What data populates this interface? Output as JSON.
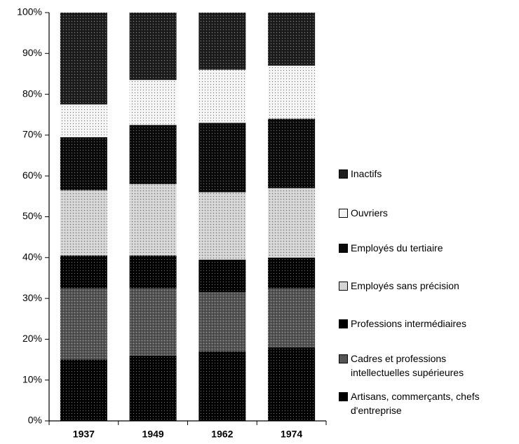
{
  "chart_data": {
    "type": "stacked_bar",
    "categories": [
      "1937",
      "1949",
      "1962",
      "1974"
    ],
    "series": [
      {
        "name": "Artisans, commerçants, chefs d'entreprise",
        "color": "#000000",
        "values": [
          15,
          16,
          17,
          18
        ]
      },
      {
        "name": "Cadres et professions intellectuelles supérieures",
        "color": "#555555",
        "values": [
          17.5,
          16.5,
          14.5,
          14.5
        ]
      },
      {
        "name": "Professions intermédiaires",
        "color": "#000000",
        "values": [
          8,
          8,
          8,
          7.5
        ]
      },
      {
        "name": "Employés sans précision",
        "color": "#d4d4d4",
        "values": [
          16,
          17.5,
          16.5,
          17
        ]
      },
      {
        "name": "Employés du tertiaire",
        "color": "#0a0a0a",
        "values": [
          13,
          14.5,
          17,
          17
        ]
      },
      {
        "name": "Ouvriers",
        "color": "#f4f4f4",
        "values": [
          8,
          11,
          13,
          13
        ]
      },
      {
        "name": "Inactifs",
        "color": "#1e1e1e",
        "values": [
          22.5,
          16.5,
          14,
          13
        ]
      }
    ],
    "ylim": [
      0,
      100
    ],
    "yticks": [
      {
        "value": 0,
        "label": "0%"
      },
      {
        "value": 10,
        "label": "10%"
      },
      {
        "value": 20,
        "label": "20%"
      },
      {
        "value": 30,
        "label": "30%"
      },
      {
        "value": 40,
        "label": "40%"
      },
      {
        "value": 50,
        "label": "50%"
      },
      {
        "value": 60,
        "label": "60%"
      },
      {
        "value": 70,
        "label": "70%"
      },
      {
        "value": 80,
        "label": "80%"
      },
      {
        "value": 90,
        "label": "90%"
      },
      {
        "value": 100,
        "label": "100%"
      }
    ],
    "legend": "right"
  }
}
